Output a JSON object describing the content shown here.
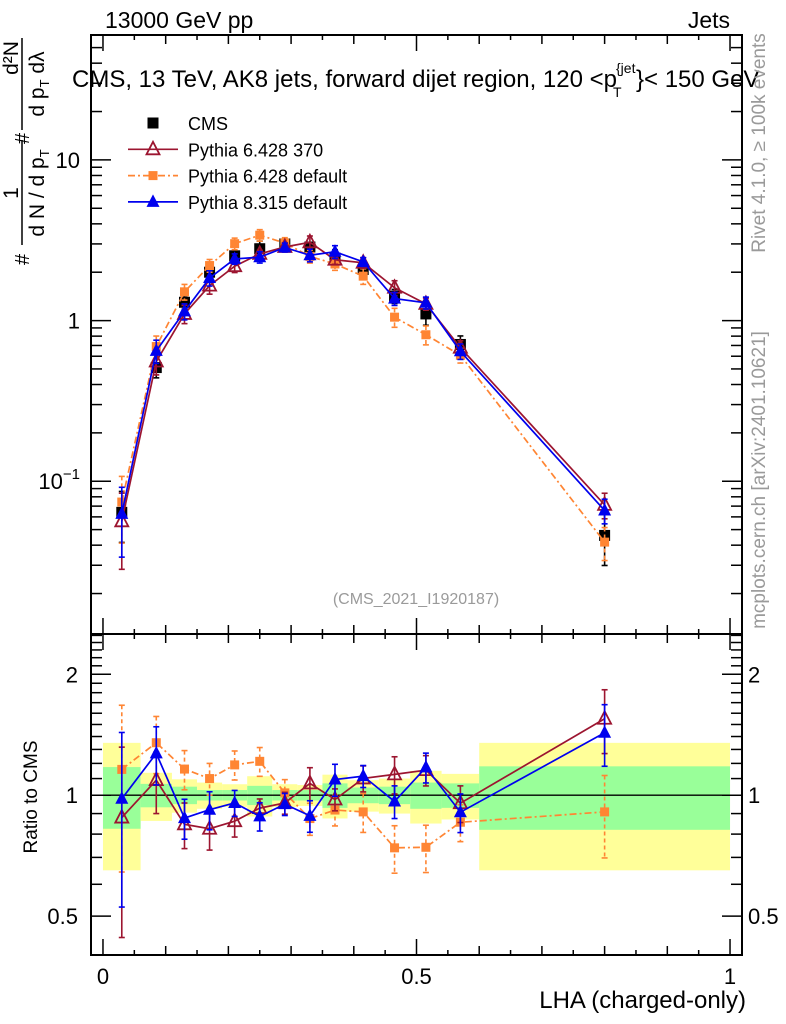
{
  "header": {
    "left": "13000 GeV pp",
    "right": "Jets"
  },
  "side_labels": {
    "rivet": "Rivet 4.1.0, ≥ 100k events",
    "mcplots": "mcplots.cern.ch [arXiv:2401.10621]"
  },
  "chart_data": {
    "type": "line",
    "title": "CMS, 13 TeV, AK8 jets, forward dijet region, 120 <p_T^{jet}}< 150 GeV",
    "title_parts": {
      "prefix": "CMS, 13 TeV, AK8 jets, forward dijet region, 120 <p",
      "sup": "{jet",
      "sub": "T",
      "suffix": "}< 150 GeV"
    },
    "xlabel": "LHA (charged-only)",
    "ylabel": "# 1/(dN/dp_T) # d²N/(dp_T dλ)",
    "ylabel_parts": {
      "hash": "#",
      "num1": "1",
      "den1": "d N / d p",
      "den1_sub": "T",
      "num2": "d²N",
      "den2": "d p",
      "den2_sub": "T",
      "den2_tail": " dλ"
    },
    "analysis_id": "(CMS_2021_I1920187)",
    "xlim": [
      -0.0191,
      1.0191
    ],
    "ylim": [
      0.0112,
      59.9
    ],
    "xscale": "linear",
    "yscale": "log",
    "grid": false,
    "legend_position": "top-left",
    "x_ticks": [
      {
        "value": 0,
        "label": "0"
      },
      {
        "value": 0.5,
        "label": "0.5"
      },
      {
        "value": 1,
        "label": "1"
      }
    ],
    "y_ticks": [
      {
        "value": 0.1,
        "base": "10",
        "exp": "−1"
      },
      {
        "value": 1,
        "base": "1",
        "exp": ""
      },
      {
        "value": 10,
        "base": "10",
        "exp": ""
      }
    ],
    "bin_edges": [
      0,
      0.06,
      0.11,
      0.15,
      0.19,
      0.23,
      0.27,
      0.31,
      0.35,
      0.39,
      0.44,
      0.49,
      0.54,
      0.6,
      1.0
    ],
    "x": [
      0.03,
      0.085,
      0.13,
      0.17,
      0.21,
      0.25,
      0.29,
      0.33,
      0.37,
      0.415,
      0.465,
      0.515,
      0.57,
      0.8
    ],
    "series": [
      {
        "id": "cms",
        "name": "CMS",
        "color": "#000000",
        "marker": "square",
        "line": "none",
        "values": [
          0.064,
          0.51,
          1.3,
          2.0,
          2.53,
          2.8,
          3.0,
          2.87,
          2.45,
          2.08,
          1.42,
          1.1,
          0.71,
          0.046
        ],
        "errors": [
          0.0224,
          0.0699,
          0.124,
          0.15,
          0.164,
          0.322,
          0.195,
          0.172,
          0.306,
          0.187,
          0.142,
          0.165,
          0.0923,
          0.0161
        ],
        "stat_errors": [
          0.0112,
          0.0342,
          0.065,
          0.06,
          0.0759,
          0.154,
          0.09,
          0.0861,
          0.172,
          0.0936,
          0.071,
          0.0825,
          0.0497,
          0.00828
        ]
      },
      {
        "id": "py6-370",
        "name": "Pythia 6.428 370",
        "color": "#9c1530",
        "marker": "open-triangle",
        "line": "solid",
        "values": [
          0.0563,
          0.556,
          1.1,
          1.65,
          2.18,
          2.6,
          2.87,
          3.07,
          2.39,
          2.29,
          1.6,
          1.27,
          0.678,
          0.0713
        ],
        "errors": [
          0.028,
          0.097,
          0.143,
          0.19,
          0.19,
          0.14,
          0.18,
          0.29,
          0.15,
          0.17,
          0.17,
          0.11,
          0.071,
          0.0129
        ]
      },
      {
        "id": "py6-default",
        "name": "Pythia 6.428 default",
        "color": "#ff8533",
        "marker": "small-square",
        "line": "dash-dot",
        "values": [
          0.0742,
          0.689,
          1.51,
          2.2,
          3.01,
          3.4,
          3.04,
          2.51,
          2.25,
          1.89,
          1.05,
          0.816,
          0.608,
          0.0418
        ],
        "errors": [
          0.033,
          0.112,
          0.169,
          0.2,
          0.25,
          0.28,
          0.24,
          0.23,
          0.196,
          0.21,
          0.142,
          0.11,
          0.064,
          0.0097
        ]
      },
      {
        "id": "py8-default",
        "name": "Pythia 8.315 default",
        "color": "#0000ee",
        "marker": "triangle",
        "line": "solid",
        "values": [
          0.0627,
          0.648,
          1.14,
          1.84,
          2.42,
          2.48,
          2.85,
          2.55,
          2.68,
          2.32,
          1.37,
          1.29,
          0.644,
          0.0658
        ],
        "errors": [
          0.029,
          0.107,
          0.13,
          0.2,
          0.18,
          0.2,
          0.18,
          0.23,
          0.245,
          0.146,
          0.128,
          0.11,
          0.071,
          0.0115
        ]
      }
    ],
    "ratio": {
      "ylabel": "Ratio to CMS",
      "reference_id": "cms",
      "ylim": [
        0.4,
        2.52
      ],
      "yscale": "log",
      "y_ticks": [
        {
          "value": 0.5,
          "label": "0.5"
        },
        {
          "value": 1,
          "label": "1"
        },
        {
          "value": 2,
          "label": "2"
        }
      ],
      "band_colors": {
        "total": "#ffff99",
        "inner": "#99ff99"
      },
      "reference_line_value": 1
    }
  }
}
